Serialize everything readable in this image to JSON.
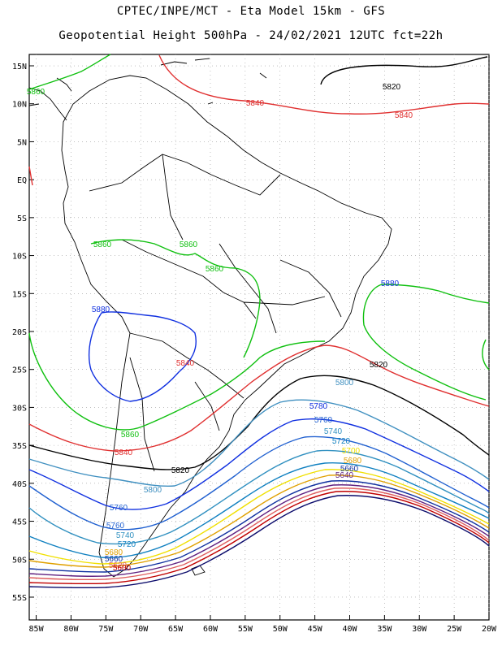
{
  "header": {
    "line1": "CPTEC/INPE/MCT -  Eta Model 15km - GFS",
    "line2": "Geopotential Height 500hPa - 24/02/2021 12UTC fct=22h"
  },
  "axes": {
    "lat_labels": [
      "15N",
      "10N",
      "5N",
      "EQ",
      "5S",
      "10S",
      "15S",
      "20S",
      "25S",
      "30S",
      "35S",
      "40S",
      "45S",
      "50S",
      "55S"
    ],
    "lat_values": [
      15,
      10,
      5,
      0,
      -5,
      -10,
      -15,
      -20,
      -25,
      -30,
      -35,
      -40,
      -45,
      -50,
      -55
    ],
    "lon_labels": [
      "85W",
      "80W",
      "75W",
      "70W",
      "65W",
      "60W",
      "55W",
      "50W",
      "45W",
      "40W",
      "35W",
      "30W",
      "25W",
      "20W"
    ],
    "lon_values": [
      -85,
      -80,
      -75,
      -70,
      -65,
      -60,
      -55,
      -50,
      -45,
      -40,
      -35,
      -30,
      -25,
      -20
    ],
    "lat_range": [
      -58,
      16.5
    ],
    "lon_range": [
      -86,
      -20
    ]
  },
  "contour_colors": {
    "5580": "#0b0b6b",
    "5600": "#c00000",
    "5620": "#e06060",
    "5640": "#602080",
    "5660": "#1030a0",
    "5680": "#e0a000",
    "5700": "#f0e000",
    "5720": "#1080c0",
    "5740": "#3090c0",
    "5760": "#2060d0",
    "5780": "#1030e0",
    "5800": "#4090c0",
    "5820": "#000000",
    "5840": "#e03030",
    "5860": "#10c010",
    "5880": "#1030e0"
  },
  "contour_labels": [
    {
      "text": "5820",
      "color_key": "5820"
    },
    {
      "text": "5840",
      "color_key": "5840"
    },
    {
      "text": "5840",
      "color_key": "5840"
    },
    {
      "text": "5860",
      "color_key": "5860"
    },
    {
      "text": "5860",
      "color_key": "5860"
    },
    {
      "text": "5860",
      "color_key": "5860"
    },
    {
      "text": "5860",
      "color_key": "5860"
    },
    {
      "text": "5880",
      "color_key": "5880"
    },
    {
      "text": "5880",
      "color_key": "5880"
    },
    {
      "text": "5840",
      "color_key": "5840"
    },
    {
      "text": "5820",
      "color_key": "5820"
    },
    {
      "text": "5800",
      "color_key": "5800"
    },
    {
      "text": "5780",
      "color_key": "5780"
    },
    {
      "text": "5760",
      "color_key": "5760"
    },
    {
      "text": "5740",
      "color_key": "5740"
    },
    {
      "text": "5720",
      "color_key": "5720"
    },
    {
      "text": "5700",
      "color_key": "5700"
    },
    {
      "text": "5680",
      "color_key": "5680"
    },
    {
      "text": "5660",
      "color_key": "5660"
    },
    {
      "text": "5640",
      "color_key": "5640"
    },
    {
      "text": "5860",
      "color_key": "5860"
    },
    {
      "text": "5840",
      "color_key": "5840"
    },
    {
      "text": "5820",
      "color_key": "5820"
    },
    {
      "text": "5800",
      "color_key": "5800"
    },
    {
      "text": "5760",
      "color_key": "5760"
    },
    {
      "text": "5760",
      "color_key": "5760"
    },
    {
      "text": "5740",
      "color_key": "5740"
    },
    {
      "text": "5720",
      "color_key": "5720"
    },
    {
      "text": "5680",
      "color_key": "5680"
    },
    {
      "text": "5660",
      "color_key": "5660"
    },
    {
      "text": "5620",
      "color_key": "5620"
    },
    {
      "text": "5600",
      "color_key": "5600"
    }
  ]
}
